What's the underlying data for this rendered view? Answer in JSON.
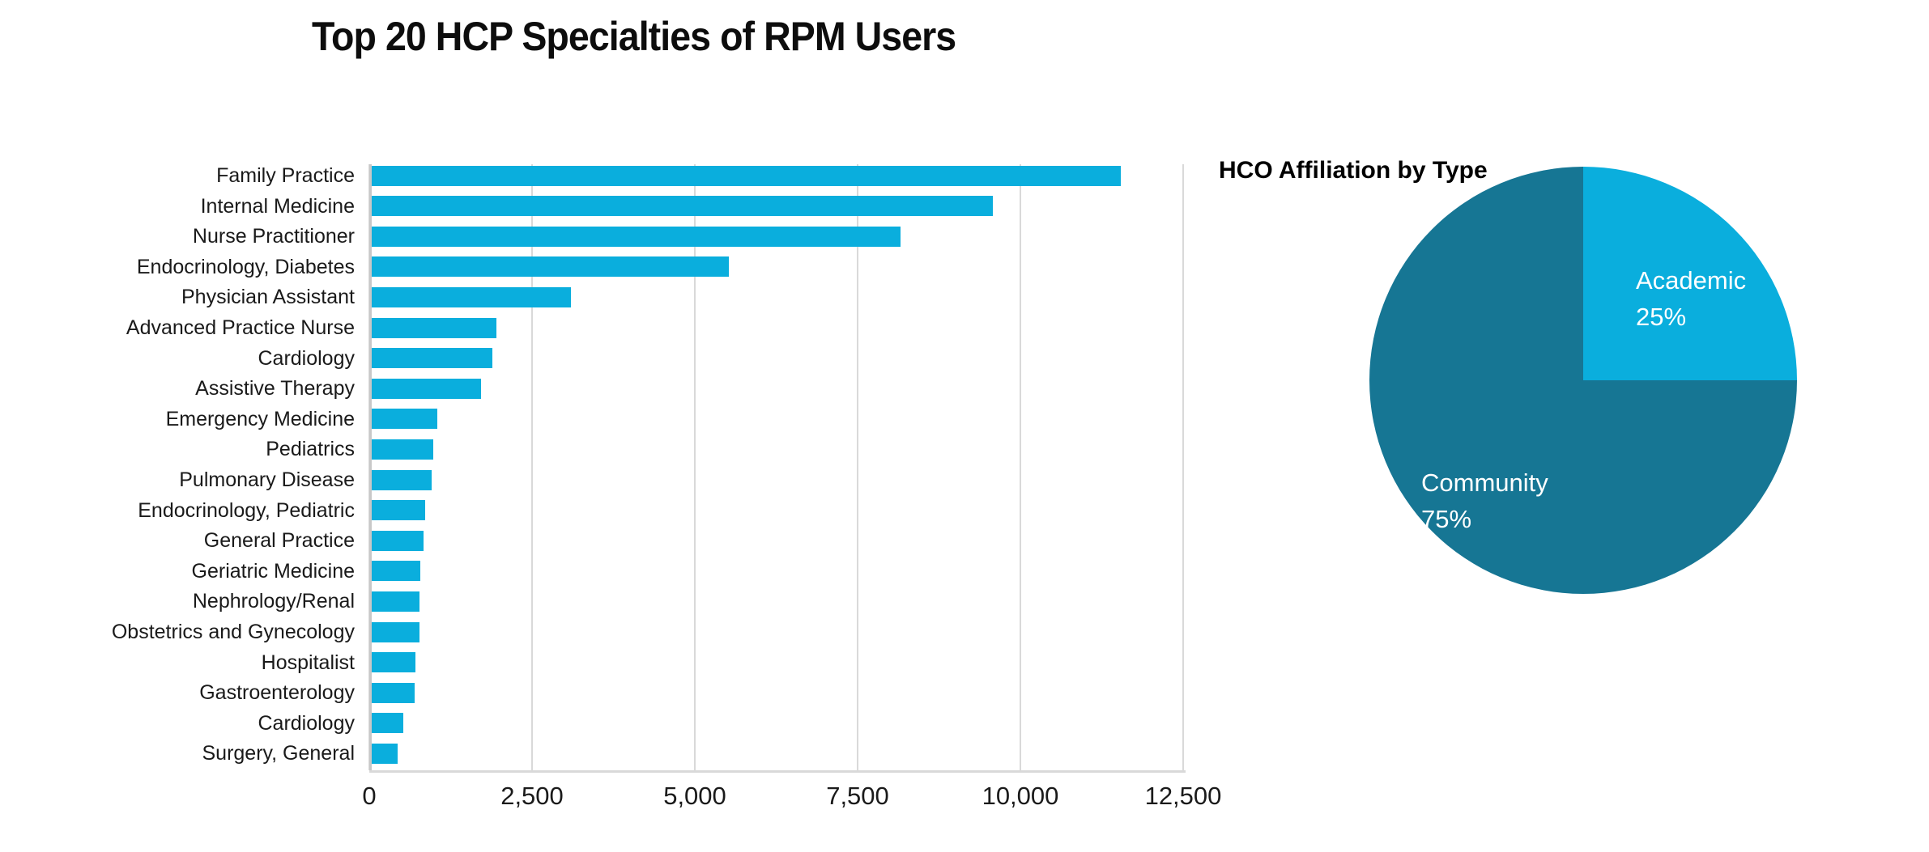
{
  "colors": {
    "background": "#ffffff",
    "bar": "#0aaedd",
    "pie_academic": "#0aaedd",
    "pie_community": "#167694",
    "grid": "#d9d9d9",
    "axis": "#c8c8c8",
    "tick_text": "#1a1a1a",
    "title_text": "#0d0d0d",
    "pie_label_text": "#ffffff"
  },
  "chart_data": [
    {
      "type": "bar",
      "orientation": "horizontal",
      "title": "Top 20 HCP Specialties of RPM Users",
      "categories": [
        "Family Practice",
        "Internal Medicine",
        "Nurse Practitioner",
        "Endocrinology, Diabetes",
        "Physician Assistant",
        "Advanced Practice Nurse",
        "Cardiology",
        "Assistive Therapy",
        "Emergency Medicine",
        "Pediatrics",
        "Pulmonary Disease",
        "Endocrinology, Pediatric",
        "General Practice",
        "Geriatric Medicine",
        "Nephrology/Renal",
        "Obstetrics and Gynecology",
        "Hospitalist",
        "Gastroenterology",
        "Cardiology",
        "Surgery, General"
      ],
      "values": [
        11500,
        9540,
        8120,
        5490,
        3060,
        1915,
        1855,
        1680,
        1005,
        950,
        920,
        825,
        800,
        750,
        735,
        730,
        670,
        655,
        480,
        395
      ],
      "xlabel": "",
      "ylabel": "",
      "xlim": [
        0,
        12500
      ],
      "xticks": [
        0,
        2500,
        5000,
        7500,
        10000,
        12500
      ],
      "xtick_labels": [
        "0",
        "2,500",
        "5,000",
        "7,500",
        "10,000",
        "12,500"
      ],
      "grid": true,
      "bar_color": "#0aaedd"
    },
    {
      "type": "pie",
      "title": "HCO Affiliation by Type",
      "start_angle_deg": 0,
      "direction": "clockwise",
      "slices": [
        {
          "label": "Academic",
          "value": 25,
          "pct_label": "25%",
          "color": "#0aaedd"
        },
        {
          "label": "Community",
          "value": 75,
          "pct_label": "75%",
          "color": "#167694"
        }
      ],
      "labels_inside": true,
      "label_color": "#ffffff"
    }
  ]
}
